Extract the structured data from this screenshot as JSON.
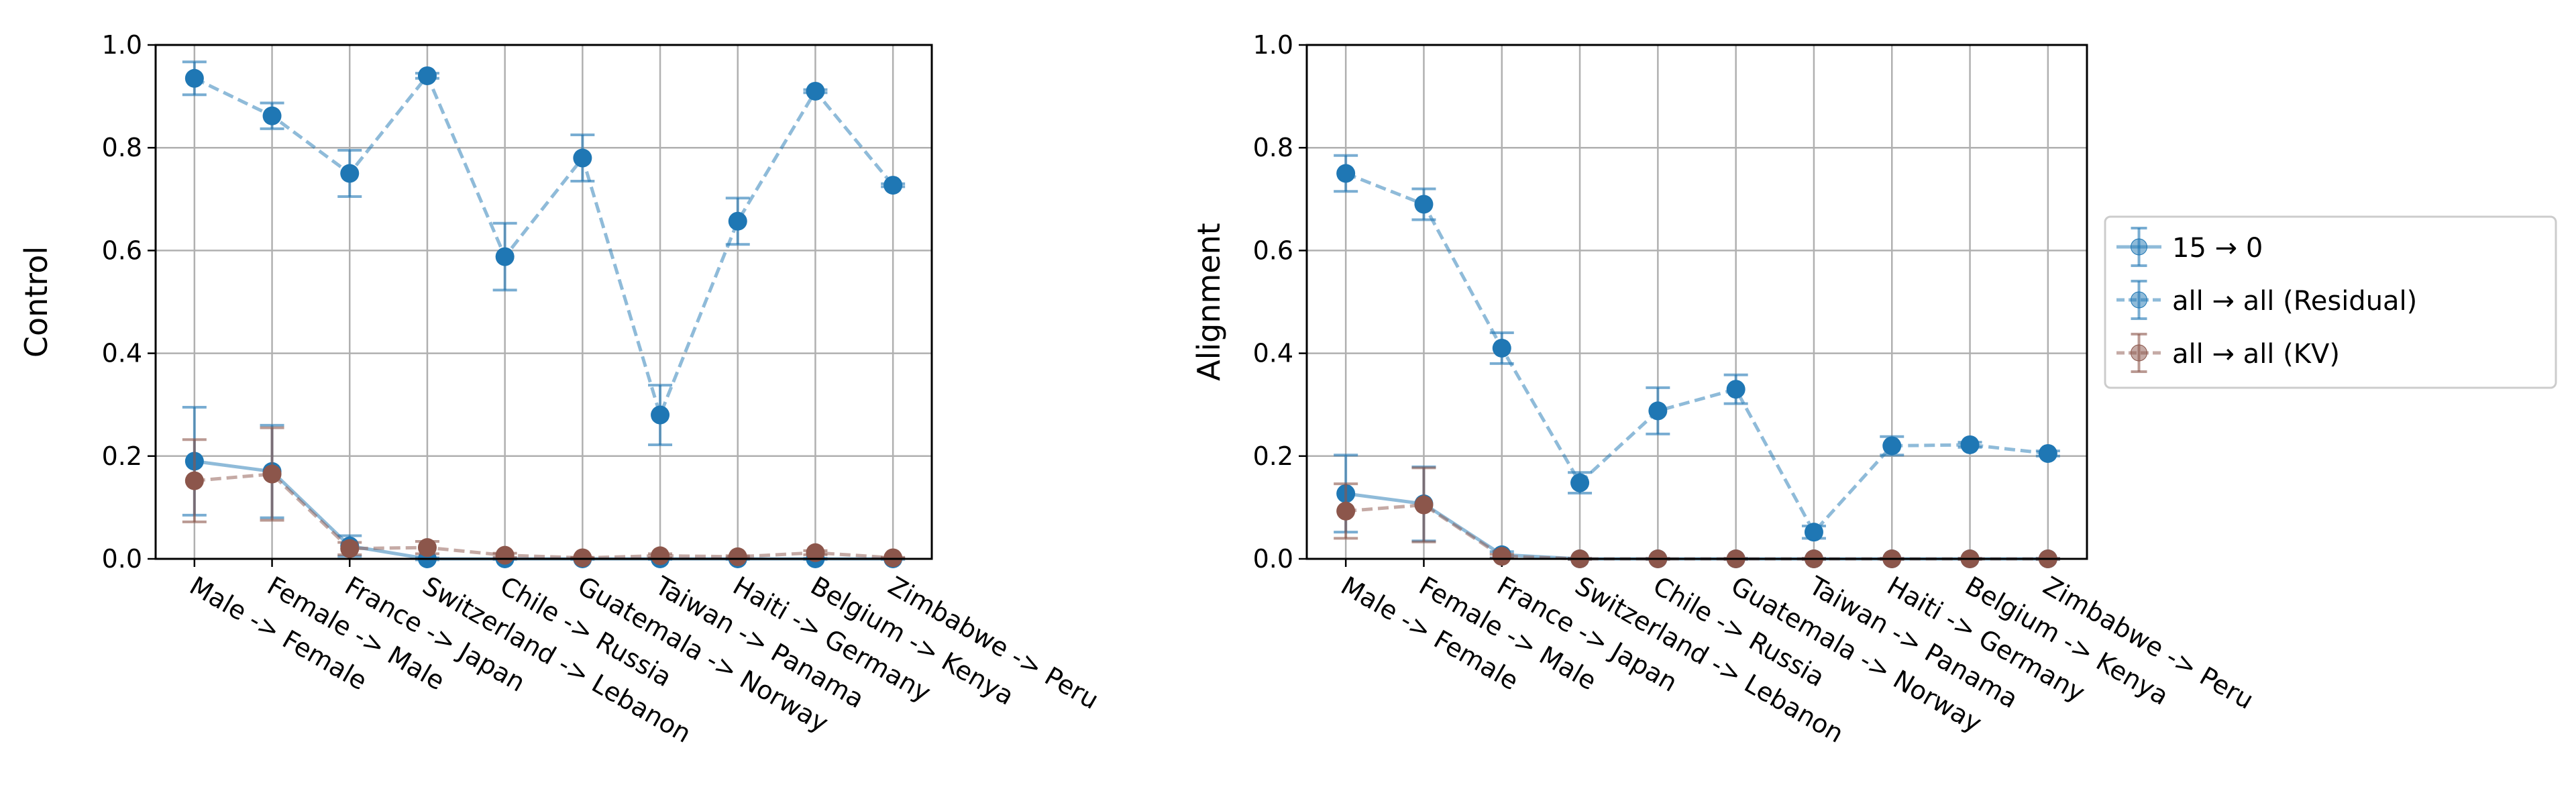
{
  "chart_data": [
    {
      "type": "line",
      "ylabel": "Control",
      "xlabel": "",
      "ylim": [
        0,
        1.0
      ],
      "yticks": [
        "0.0",
        "0.2",
        "0.4",
        "0.6",
        "0.8",
        "1.0"
      ],
      "grid": true,
      "categories": [
        "Male -> Female",
        "Female -> Male",
        "France -> Japan",
        "Switzerland -> Lebanon",
        "Chile -> Russia",
        "Guatemala -> Norway",
        "Taiwan -> Panama",
        "Haiti -> Germany",
        "Belgium -> Kenya",
        "Zimbabwe -> Peru"
      ],
      "series": [
        {
          "name": "15 → 0",
          "values": [
            0.19,
            0.17,
            0.025,
            0.0,
            0.0,
            0.0,
            0.0,
            0.0,
            0.0,
            0.0
          ],
          "errors": [
            0.105,
            0.09,
            0.02,
            0.002,
            0.001,
            0.001,
            0.001,
            0.001,
            0.001,
            0.001
          ]
        },
        {
          "name": "all → all (Residual)",
          "values": [
            0.935,
            0.862,
            0.75,
            0.94,
            0.588,
            0.78,
            0.28,
            0.657,
            0.91,
            0.727
          ],
          "errors": [
            0.032,
            0.025,
            0.045,
            0.005,
            0.065,
            0.045,
            0.058,
            0.045,
            0.003,
            0.003
          ]
        },
        {
          "name": "all → all (KV)",
          "values": [
            0.152,
            0.165,
            0.02,
            0.022,
            0.007,
            0.002,
            0.006,
            0.004,
            0.012,
            0.002
          ],
          "errors": [
            0.08,
            0.09,
            0.012,
            0.012,
            0.004,
            0.001,
            0.004,
            0.002,
            0.004,
            0.001
          ]
        }
      ]
    },
    {
      "type": "line",
      "ylabel": "Alignment",
      "xlabel": "",
      "ylim": [
        0,
        1.0
      ],
      "yticks": [
        "0.0",
        "0.2",
        "0.4",
        "0.6",
        "0.8",
        "1.0"
      ],
      "grid": true,
      "categories": [
        "Male -> Female",
        "Female -> Male",
        "France -> Japan",
        "Switzerland -> Lebanon",
        "Chile -> Russia",
        "Guatemala -> Norway",
        "Taiwan -> Panama",
        "Haiti -> Germany",
        "Belgium -> Kenya",
        "Zimbabwe -> Peru"
      ],
      "series": [
        {
          "name": "15 → 0",
          "values": [
            0.127,
            0.107,
            0.008,
            0.0,
            0.0,
            0.0,
            0.0,
            0.0,
            0.0,
            0.0
          ],
          "errors": [
            0.075,
            0.072,
            0.006,
            0.001,
            0.001,
            0.001,
            0.001,
            0.001,
            0.001,
            0.001
          ]
        },
        {
          "name": "all → all (Residual)",
          "values": [
            0.75,
            0.69,
            0.41,
            0.148,
            0.288,
            0.33,
            0.052,
            0.22,
            0.222,
            0.205
          ],
          "errors": [
            0.035,
            0.03,
            0.03,
            0.02,
            0.045,
            0.028,
            0.012,
            0.018,
            0.005,
            0.005
          ]
        },
        {
          "name": "all → all (KV)",
          "values": [
            0.093,
            0.105,
            0.005,
            0.0,
            0.0,
            0.0,
            0.0,
            0.0,
            0.0,
            0.0
          ],
          "errors": [
            0.053,
            0.072,
            0.004,
            0.001,
            0.001,
            0.001,
            0.001,
            0.001,
            0.001,
            0.001
          ]
        }
      ]
    }
  ],
  "legend": {
    "placement": "right",
    "entries": [
      "15 → 0",
      "all → all (Residual)",
      "all → all (KV)"
    ]
  },
  "colors": {
    "15 → 0": "#1f77b4",
    "all → all (Residual)": "#1f77b4",
    "all → all (KV)": "#8c564b"
  }
}
